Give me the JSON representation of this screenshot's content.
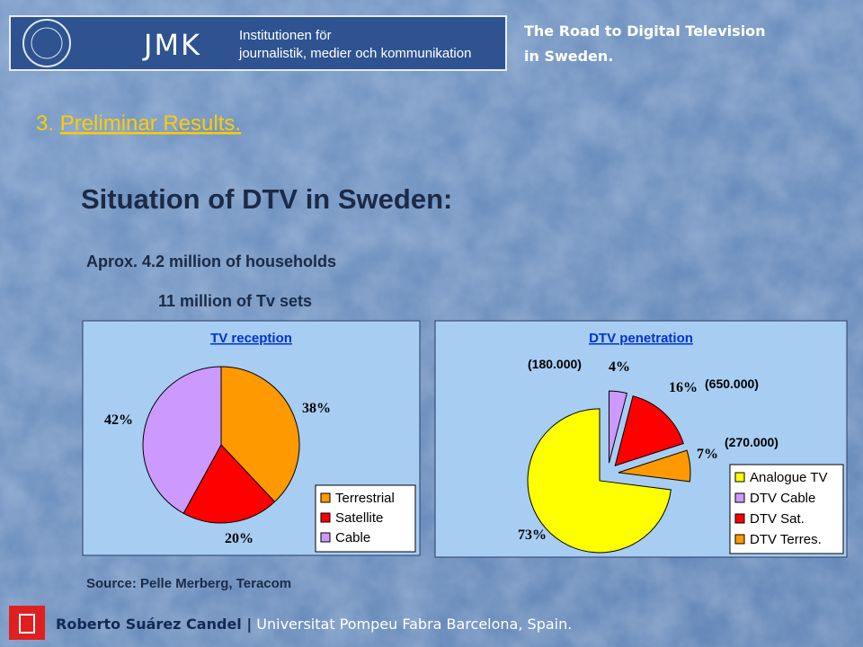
{
  "header": {
    "logo_text": "JMK",
    "institution_line1": "Institutionen för",
    "institution_line2": "journalistik, medier och kommunikation",
    "deck_title_line1": "The Road to Digital Television",
    "deck_title_line2": "in Sweden."
  },
  "section": {
    "number": "3.",
    "title": "Preliminar Results."
  },
  "heading": "Situation of DTV in Sweden:",
  "facts": [
    "Aprox. 4.2 million of households",
    "11 million of Tv sets"
  ],
  "source": "Source: Pelle Merberg, Teracom",
  "footer": {
    "author": "Roberto Suárez Candel |",
    "affiliation": "Universitat Pompeu Fabra Barcelona, Spain."
  },
  "chart_data": [
    {
      "type": "pie",
      "title": "TV reception",
      "categories": [
        "Terrestrial",
        "Satellite",
        "Cable"
      ],
      "values": [
        38,
        20,
        42
      ],
      "value_labels": [
        "38%",
        "20%",
        "42%"
      ],
      "colors": [
        "#ff9900",
        "#ff0000",
        "#cc99ff"
      ],
      "legend": "bottom-right"
    },
    {
      "type": "pie",
      "title": "DTV penetration",
      "categories": [
        "Analogue TV",
        "DTV Cable",
        "DTV Sat.",
        "DTV Terres."
      ],
      "values": [
        73,
        4,
        16,
        7
      ],
      "value_labels": [
        "73%",
        "4%",
        "16%",
        "7%"
      ],
      "colors": [
        "#ffff00",
        "#cc99ff",
        "#ff0000",
        "#ff9900"
      ],
      "annotations": [
        "(180.000)",
        "(650.000)",
        "(270.000)"
      ],
      "legend": "bottom-right"
    }
  ]
}
